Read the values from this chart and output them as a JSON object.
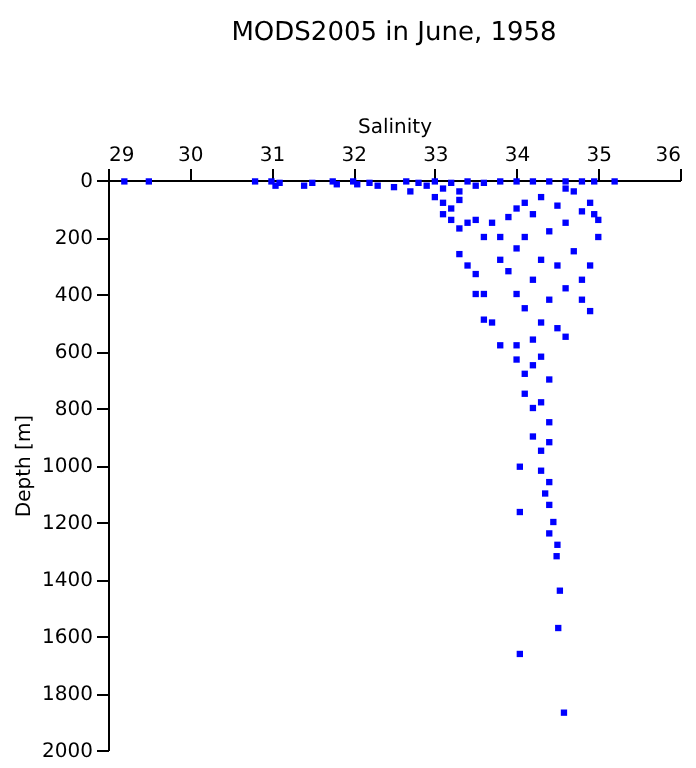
{
  "chart_data": {
    "type": "scatter",
    "title": "MODS2005 in June, 1958",
    "xlabel": "Salinity",
    "ylabel": "Depth [m]",
    "x": [
      29.2,
      29.5,
      30.8,
      31.0,
      31.05,
      31.1,
      31.4,
      31.5,
      31.75,
      31.8,
      32.0,
      32.05,
      32.2,
      32.3,
      32.5,
      32.65,
      32.7,
      32.8,
      32.9,
      33.0,
      33.1,
      33.2,
      33.3,
      33.4,
      33.5,
      33.6,
      33.8,
      34.0,
      34.2,
      34.4,
      34.6,
      34.8,
      34.95,
      35.2,
      33.0,
      33.1,
      33.2,
      33.3,
      33.1,
      33.2,
      33.4,
      33.3,
      33.5,
      33.6,
      33.7,
      33.8,
      33.9,
      34.0,
      34.1,
      34.2,
      34.3,
      34.5,
      34.6,
      34.7,
      34.8,
      34.9,
      34.95,
      35.0,
      35.0,
      34.4,
      34.1,
      34.6,
      33.3,
      33.4,
      33.5,
      33.5,
      33.6,
      33.7,
      33.8,
      33.9,
      34.0,
      34.0,
      34.1,
      34.2,
      34.3,
      34.4,
      34.5,
      34.6,
      34.7,
      34.8,
      34.9,
      34.9,
      34.6,
      34.5,
      34.0,
      34.2,
      33.6,
      34.3,
      34.8,
      33.8,
      34.0,
      34.1,
      34.2,
      34.3,
      34.4,
      34.1,
      34.2,
      34.3,
      34.4,
      34.2,
      34.3,
      34.4,
      34.04,
      34.3,
      34.4,
      34.35,
      34.4,
      34.04,
      34.45,
      34.4,
      34.5,
      34.49,
      34.53,
      34.51,
      34.04,
      34.58
    ],
    "values": [
      5,
      5,
      5,
      5,
      20,
      10,
      20,
      10,
      5,
      15,
      5,
      15,
      10,
      20,
      25,
      5,
      40,
      10,
      20,
      5,
      30,
      10,
      40,
      5,
      20,
      10,
      5,
      5,
      5,
      5,
      5,
      5,
      5,
      5,
      60,
      80,
      100,
      70,
      120,
      140,
      150,
      170,
      140,
      200,
      150,
      200,
      130,
      100,
      80,
      120,
      60,
      90,
      150,
      40,
      110,
      80,
      120,
      140,
      200,
      180,
      200,
      30,
      260,
      300,
      330,
      400,
      490,
      500,
      280,
      320,
      240,
      400,
      450,
      350,
      280,
      420,
      300,
      380,
      250,
      420,
      300,
      460,
      550,
      520,
      580,
      560,
      400,
      500,
      350,
      580,
      630,
      680,
      650,
      620,
      700,
      750,
      800,
      780,
      850,
      900,
      950,
      920,
      1006,
      1020,
      1060,
      1100,
      1140,
      1165,
      1200,
      1240,
      1280,
      1320,
      1441,
      1572,
      1663,
      1869
    ],
    "color": "#0000ff",
    "marker": "square",
    "xlim": [
      29,
      36
    ],
    "xticks": [
      29,
      30,
      31,
      32,
      33,
      34,
      35,
      36
    ],
    "ylim": [
      2000,
      0
    ],
    "yticks": [
      0,
      200,
      400,
      600,
      800,
      1000,
      1200,
      1400,
      1600,
      1800,
      2000
    ],
    "grid": false
  }
}
